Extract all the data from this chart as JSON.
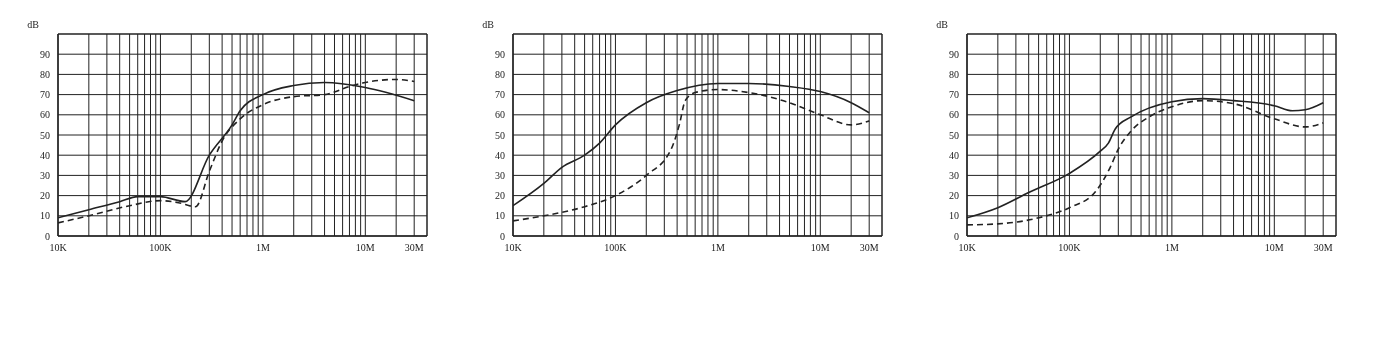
{
  "chart_data": [
    {
      "type": "line",
      "ylabel": "dB",
      "log": "x",
      "grid": true,
      "marker": "none",
      "xlim": [
        10000,
        40000000
      ],
      "ylim": [
        0,
        100
      ],
      "xticks": [
        {
          "value": 10000,
          "label": "10K"
        },
        {
          "value": 20000,
          "label": null
        },
        {
          "value": 30000,
          "label": null
        },
        {
          "value": 40000,
          "label": null
        },
        {
          "value": 50000,
          "label": null
        },
        {
          "value": 60000,
          "label": null
        },
        {
          "value": 70000,
          "label": null
        },
        {
          "value": 80000,
          "label": null
        },
        {
          "value": 90000,
          "label": null
        },
        {
          "value": 100000,
          "label": "100K"
        },
        {
          "value": 200000,
          "label": null
        },
        {
          "value": 300000,
          "label": null
        },
        {
          "value": 400000,
          "label": null
        },
        {
          "value": 500000,
          "label": null
        },
        {
          "value": 600000,
          "label": null
        },
        {
          "value": 700000,
          "label": null
        },
        {
          "value": 800000,
          "label": null
        },
        {
          "value": 900000,
          "label": null
        },
        {
          "value": 1000000,
          "label": "1M"
        },
        {
          "value": 2000000,
          "label": null
        },
        {
          "value": 3000000,
          "label": null
        },
        {
          "value": 4000000,
          "label": null
        },
        {
          "value": 5000000,
          "label": null
        },
        {
          "value": 6000000,
          "label": null
        },
        {
          "value": 7000000,
          "label": null
        },
        {
          "value": 8000000,
          "label": null
        },
        {
          "value": 9000000,
          "label": null
        },
        {
          "value": 10000000,
          "label": "10M"
        },
        {
          "value": 20000000,
          "label": null
        },
        {
          "value": 30000000,
          "label": "30M"
        }
      ],
      "yticks": [
        0,
        10,
        20,
        30,
        40,
        50,
        60,
        70,
        80,
        90
      ],
      "series": [
        {
          "color": "#222222",
          "line_style": "solid",
          "x": [
            10000,
            20000,
            40000,
            60000,
            100000,
            174000,
            300000,
            500000,
            600000,
            1000000,
            2000000,
            4000000,
            10000000,
            30000000
          ],
          "values": [
            9,
            13,
            17,
            19.5,
            19.5,
            17,
            40,
            55,
            62,
            70,
            74.5,
            76,
            73.5,
            67
          ]
        },
        {
          "color": "#222222",
          "line_style": "dashed",
          "x": [
            10000,
            20000,
            50000,
            100000,
            150000,
            220000,
            300000,
            400000,
            600000,
            1000000,
            2000000,
            4000000,
            7000000,
            10000000,
            20000000,
            30000000
          ],
          "values": [
            6.5,
            10,
            15,
            17.5,
            16.5,
            14.5,
            32,
            47,
            58,
            65,
            69,
            70,
            74,
            76,
            77.5,
            76.5
          ]
        }
      ]
    },
    {
      "type": "line",
      "ylabel": "dB",
      "log": "x",
      "grid": true,
      "marker": "none",
      "xlim": [
        10000,
        40000000
      ],
      "ylim": [
        0,
        100
      ],
      "xticks": [
        {
          "value": 10000,
          "label": "10K"
        },
        {
          "value": 20000,
          "label": null
        },
        {
          "value": 30000,
          "label": null
        },
        {
          "value": 40000,
          "label": null
        },
        {
          "value": 50000,
          "label": null
        },
        {
          "value": 60000,
          "label": null
        },
        {
          "value": 70000,
          "label": null
        },
        {
          "value": 80000,
          "label": null
        },
        {
          "value": 90000,
          "label": null
        },
        {
          "value": 100000,
          "label": "100K"
        },
        {
          "value": 200000,
          "label": null
        },
        {
          "value": 300000,
          "label": null
        },
        {
          "value": 400000,
          "label": null
        },
        {
          "value": 500000,
          "label": null
        },
        {
          "value": 600000,
          "label": null
        },
        {
          "value": 700000,
          "label": null
        },
        {
          "value": 800000,
          "label": null
        },
        {
          "value": 900000,
          "label": null
        },
        {
          "value": 1000000,
          "label": "1M"
        },
        {
          "value": 2000000,
          "label": null
        },
        {
          "value": 3000000,
          "label": null
        },
        {
          "value": 4000000,
          "label": null
        },
        {
          "value": 5000000,
          "label": null
        },
        {
          "value": 6000000,
          "label": null
        },
        {
          "value": 7000000,
          "label": null
        },
        {
          "value": 8000000,
          "label": null
        },
        {
          "value": 9000000,
          "label": null
        },
        {
          "value": 10000000,
          "label": "10M"
        },
        {
          "value": 20000000,
          "label": null
        },
        {
          "value": 30000000,
          "label": "30M"
        }
      ],
      "yticks": [
        0,
        10,
        20,
        30,
        40,
        50,
        60,
        70,
        80,
        90
      ],
      "series": [
        {
          "color": "#222222",
          "line_style": "solid",
          "x": [
            10000,
            20000,
            30000,
            50000,
            70000,
            100000,
            200000,
            400000,
            1000000,
            2000000,
            5000000,
            10000000,
            20000000,
            30000000
          ],
          "values": [
            15,
            26,
            34,
            40,
            46,
            55,
            66,
            72,
            75.5,
            75.5,
            74,
            71.5,
            66,
            61
          ]
        },
        {
          "color": "#222222",
          "line_style": "dashed",
          "x": [
            10000,
            20000,
            50000,
            100000,
            200000,
            350000,
            420000,
            480000,
            600000,
            1000000,
            2000000,
            5000000,
            10000000,
            20000000,
            30000000
          ],
          "values": [
            7.5,
            10,
            14.5,
            20,
            30,
            43,
            55,
            67,
            71,
            72.5,
            71,
            66,
            60,
            55,
            57
          ]
        }
      ]
    },
    {
      "type": "line",
      "ylabel": "dB",
      "log": "x",
      "grid": true,
      "marker": "none",
      "xlim": [
        10000,
        40000000
      ],
      "ylim": [
        0,
        100
      ],
      "xticks": [
        {
          "value": 10000,
          "label": "10K"
        },
        {
          "value": 20000,
          "label": null
        },
        {
          "value": 30000,
          "label": null
        },
        {
          "value": 40000,
          "label": null
        },
        {
          "value": 50000,
          "label": null
        },
        {
          "value": 60000,
          "label": null
        },
        {
          "value": 70000,
          "label": null
        },
        {
          "value": 80000,
          "label": null
        },
        {
          "value": 90000,
          "label": null
        },
        {
          "value": 100000,
          "label": "100K"
        },
        {
          "value": 200000,
          "label": null
        },
        {
          "value": 300000,
          "label": null
        },
        {
          "value": 400000,
          "label": null
        },
        {
          "value": 500000,
          "label": null
        },
        {
          "value": 600000,
          "label": null
        },
        {
          "value": 700000,
          "label": null
        },
        {
          "value": 800000,
          "label": null
        },
        {
          "value": 900000,
          "label": null
        },
        {
          "value": 1000000,
          "label": "1M"
        },
        {
          "value": 2000000,
          "label": null
        },
        {
          "value": 3000000,
          "label": null
        },
        {
          "value": 4000000,
          "label": null
        },
        {
          "value": 5000000,
          "label": null
        },
        {
          "value": 6000000,
          "label": null
        },
        {
          "value": 7000000,
          "label": null
        },
        {
          "value": 8000000,
          "label": null
        },
        {
          "value": 9000000,
          "label": null
        },
        {
          "value": 10000000,
          "label": "10M"
        },
        {
          "value": 20000000,
          "label": null
        },
        {
          "value": 30000000,
          "label": "30M"
        }
      ],
      "yticks": [
        0,
        10,
        20,
        30,
        40,
        50,
        60,
        70,
        80,
        90
      ],
      "series": [
        {
          "color": "#222222",
          "line_style": "solid",
          "x": [
            10000,
            20000,
            40000,
            100000,
            200000,
            240000,
            280000,
            400000,
            1000000,
            2000000,
            4000000,
            10000000,
            15000000,
            20000000,
            30000000
          ],
          "values": [
            9,
            14,
            21.5,
            31,
            42,
            46,
            53,
            59,
            66.5,
            68,
            67,
            64.5,
            62,
            62.5,
            66
          ]
        },
        {
          "color": "#222222",
          "line_style": "dashed",
          "x": [
            10000,
            20000,
            50000,
            100000,
            180000,
            250000,
            300000,
            400000,
            600000,
            1000000,
            2000000,
            4000000,
            10000000,
            20000000,
            30000000
          ],
          "values": [
            5.5,
            6,
            9,
            14,
            22,
            34,
            43,
            52,
            59,
            64,
            67,
            65.5,
            58,
            54,
            56
          ]
        }
      ]
    }
  ]
}
